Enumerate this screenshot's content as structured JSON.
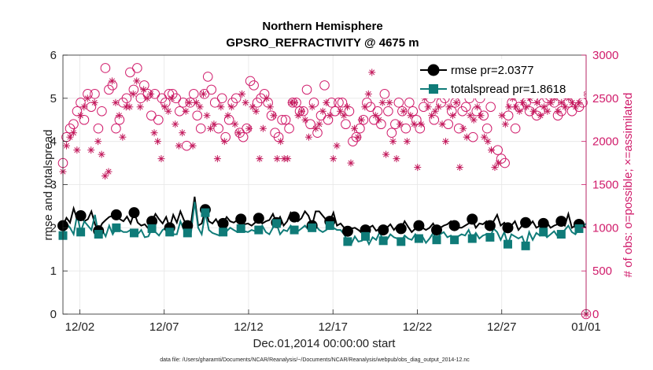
{
  "chart_data": {
    "type": "line",
    "title": "Northern Hemisphere",
    "subtitle": "GPSRO_REFRACTIVITY @ 4675 m",
    "xlabel": "Dec.01,2014 00:00:00 start",
    "ylabel": "rmse and totalspread",
    "ylabel_right": "# of obs: o=possible; ×=assimilated",
    "footnote": "data file: /Users/gharamti/Documents/NCAR/Reanalysis/~/Documents/NCAR/Reanalysis/webpub/obs_diag_output_2014-12.nc",
    "x_range_days": [
      0,
      31
    ],
    "ylim": [
      0,
      6
    ],
    "ylim_right": [
      0,
      3000
    ],
    "grid": true,
    "x_ticks": [
      {
        "day": 1,
        "label": "12/02"
      },
      {
        "day": 6,
        "label": "12/07"
      },
      {
        "day": 11,
        "label": "12/12"
      },
      {
        "day": 16,
        "label": "12/17"
      },
      {
        "day": 21,
        "label": "12/22"
      },
      {
        "day": 26,
        "label": "12/27"
      },
      {
        "day": 31,
        "label": "01/01"
      }
    ],
    "y_ticks": [
      "0",
      "1",
      "2",
      "3",
      "4",
      "5",
      "6"
    ],
    "y_ticks_right": [
      "0",
      "500",
      "1000",
      "1500",
      "2000",
      "2500",
      "3000"
    ],
    "legend": [
      {
        "label": "rmse pr=2.0377",
        "color": "#000000",
        "marker": "circle"
      },
      {
        "label": "totalspread pr=1.8618",
        "color": "#0f7b78",
        "marker": "square"
      }
    ],
    "series": [
      {
        "name": "rmse",
        "color": "#000000",
        "values": [
          2.05,
          2.23,
          2.12,
          2.45,
          2.2,
          2.28,
          2.15,
          2.2,
          2.38,
          2.08,
          1.93,
          2.1,
          2.18,
          2.25,
          2.28,
          2.3,
          2.2,
          2.15,
          2.26,
          2.1,
          2.35,
          2.12,
          2.05,
          2.08,
          1.98,
          2.15,
          2.32,
          2.2,
          2.1,
          2.25,
          2.0,
          2.3,
          2.12,
          2.38,
          2.18,
          2.05,
          2.12,
          2.72,
          2.05,
          2.1,
          2.42,
          2.15,
          2.1,
          2.2,
          2.05,
          2.1,
          2.25,
          2.15,
          2.12,
          2.18,
          2.2,
          2.08,
          2.1,
          2.05,
          2.12,
          2.22,
          2.1,
          2.15,
          2.18,
          2.32,
          2.12,
          2.25,
          2.05,
          2.15,
          2.35,
          2.25,
          2.15,
          2.22,
          2.38,
          2.28,
          2.05,
          2.38,
          2.38,
          2.28,
          2.18,
          2.15,
          2.35,
          2.05,
          2.1,
          2.0,
          1.92,
          1.98,
          2.0,
          1.95,
          1.88,
          1.95,
          2.0,
          2.05,
          1.93,
          1.98,
          1.95,
          2.0,
          2.08,
          1.95,
          2.05,
          1.98,
          2.15,
          2.02,
          1.9,
          1.98,
          2.05,
          2.0,
          1.95,
          2.0,
          2.1,
          1.95,
          2.0,
          2.05,
          2.08,
          2.15,
          2.05,
          2.0,
          2.0,
          2.05,
          2.1,
          2.2,
          2.0,
          2.1,
          2.08,
          2.15,
          2.05,
          2.15,
          2.3,
          2.05,
          2.12,
          2.0,
          2.05,
          2.15,
          1.95,
          2.05,
          2.12,
          2.05,
          2.15,
          2.0,
          2.05,
          2.1,
          2.12,
          2.0,
          2.05,
          2.08,
          2.15,
          2.05,
          2.32,
          2.0,
          2.05,
          2.08,
          2.05,
          2.0
        ],
        "markers_every": 5
      },
      {
        "name": "totalspread",
        "color": "#0f7b78",
        "values": [
          1.82,
          2.1,
          2.0,
          1.85,
          2.3,
          1.9,
          2.15,
          2.05,
          1.95,
          2.3,
          1.85,
          1.95,
          1.8,
          2.05,
          1.85,
          2.0,
          1.95,
          1.9,
          1.9,
          1.95,
          1.88,
          1.85,
          1.95,
          1.78,
          1.8,
          1.98,
          1.9,
          1.82,
          1.95,
          2.0,
          1.9,
          1.85,
          1.85,
          2.15,
          1.95,
          1.88,
          1.9,
          2.6,
          2.0,
          1.85,
          2.35,
          1.95,
          1.88,
          1.85,
          1.82,
          1.9,
          1.92,
          2.0,
          1.95,
          1.9,
          1.98,
          1.92,
          1.9,
          1.95,
          1.92,
          1.95,
          2.05,
          1.9,
          1.85,
          2.0,
          2.1,
          1.85,
          1.95,
          1.92,
          2.05,
          1.95,
          1.92,
          1.98,
          2.05,
          1.95,
          2.0,
          2.05,
          1.95,
          1.9,
          1.95,
          2.05,
          2.0,
          1.95,
          1.95,
          1.85,
          1.68,
          1.62,
          1.8,
          1.68,
          1.7,
          1.8,
          1.62,
          1.78,
          1.72,
          1.9,
          1.7,
          1.72,
          1.85,
          1.78,
          1.75,
          1.68,
          1.82,
          1.75,
          1.72,
          1.85,
          1.75,
          1.8,
          1.65,
          1.75,
          1.88,
          1.72,
          1.85,
          1.9,
          1.78,
          1.82,
          1.72,
          1.8,
          1.85,
          1.82,
          1.95,
          1.75,
          1.88,
          1.75,
          1.82,
          1.85,
          1.78,
          1.98,
          1.9,
          1.72,
          1.9,
          1.62,
          1.85,
          1.8,
          1.75,
          1.8,
          1.58,
          1.9,
          1.72,
          1.88,
          1.82,
          1.9,
          1.78,
          1.85,
          1.92,
          1.8,
          1.85,
          1.95,
          2.05,
          1.9,
          1.85,
          1.98,
          2.02,
          2.1
        ],
        "markers_every": 5
      }
    ],
    "obs_possible": [
      1750,
      2050,
      2150,
      2200,
      2350,
      2450,
      2250,
      2550,
      2400,
      2550,
      2150,
      2350,
      2850,
      2600,
      2650,
      2150,
      2250,
      2450,
      2500,
      2800,
      2600,
      2850,
      2500,
      2650,
      2550,
      2300,
      2550,
      2250,
      2500,
      2450,
      2550,
      2550,
      2500,
      2350,
      2450,
      1950,
      2450,
      2550,
      2300,
      2150,
      2550,
      2750,
      2600,
      2450,
      2150,
      2500,
      2050,
      2250,
      2450,
      2500,
      2100,
      2050,
      2150,
      2700,
      2650,
      2450,
      2500,
      2550,
      2450,
      2300,
      2100,
      2050,
      2250,
      2250,
      2150,
      2450,
      2450,
      2350,
      2350,
      2600,
      2200,
      2450,
      2100,
      2300,
      2650,
      2250,
      2450,
      2350,
      2450,
      2450,
      2200,
      2350,
      2000,
      2050,
      2150,
      2250,
      2450,
      2400,
      2250,
      2350,
      2200,
      2550,
      2350,
      2100,
      2200,
      2450,
      2350,
      2150,
      2450,
      2350,
      2250,
      2150,
      2400,
      2600,
      2500,
      2250,
      2550,
      2450,
      2500,
      2200,
      2350,
      2450,
      2150,
      2350,
      2400,
      2500,
      2050,
      2350,
      2500,
      2300,
      2150,
      2400,
      2600,
      1900,
      1800,
      1750,
      2300,
      2450,
      2150,
      2400,
      2650,
      2450,
      2350,
      2500,
      2300,
      2350,
      2450,
      2500,
      2550,
      2450,
      2300,
      2350,
      2550,
      2450,
      2350,
      2600,
      2400,
      2450,
      0
    ],
    "obs_assimilated": [
      1650,
      1950,
      2050,
      2100,
      1900,
      2300,
      2400,
      2500,
      1900,
      2450,
      2000,
      1850,
      1600,
      1650,
      2700,
      2450,
      2300,
      2050,
      2400,
      2400,
      2550,
      2700,
      2400,
      2600,
      2500,
      2550,
      2100,
      2000,
      1800,
      2400,
      2350,
      2500,
      2200,
      1950,
      2100,
      2350,
      2450,
      1950,
      2450,
      2400,
      2550,
      2300,
      2150,
      2200,
      1800,
      2400,
      2000,
      2300,
      2400,
      2200,
      2100,
      2550,
      2450,
      2150,
      2400,
      2350,
      1800,
      2150,
      2500,
      2400,
      2300,
      1800,
      2000,
      1800,
      1800,
      2450,
      2450,
      2300,
      2350,
      2250,
      2050,
      2400,
      2150,
      2200,
      2350,
      2450,
      2300,
      1800,
      1950,
      2350,
      2300,
      2400,
      1750,
      2150,
      2050,
      2250,
      2400,
      2550,
      2800,
      2300,
      2250,
      2450,
      1850,
      2450,
      2000,
      1800,
      2200,
      2350,
      2000,
      2300,
      2200,
      1700,
      2200,
      2500,
      2400,
      2300,
      2350,
      2400,
      2200,
      2000,
      2400,
      2300,
      2450,
      1700,
      2150,
      2050,
      2300,
      2250,
      2400,
      2300,
      2050,
      2000,
      1900,
      1700,
      1750,
      2300,
      2200,
      2400,
      2500,
      2400,
      2350,
      2450,
      2400,
      2500,
      2350,
      2450,
      2300,
      2400,
      2350,
      2450,
      2500,
      2350,
      2450,
      2400,
      2500,
      2450,
      2400,
      2450,
      2550,
      0
    ]
  }
}
